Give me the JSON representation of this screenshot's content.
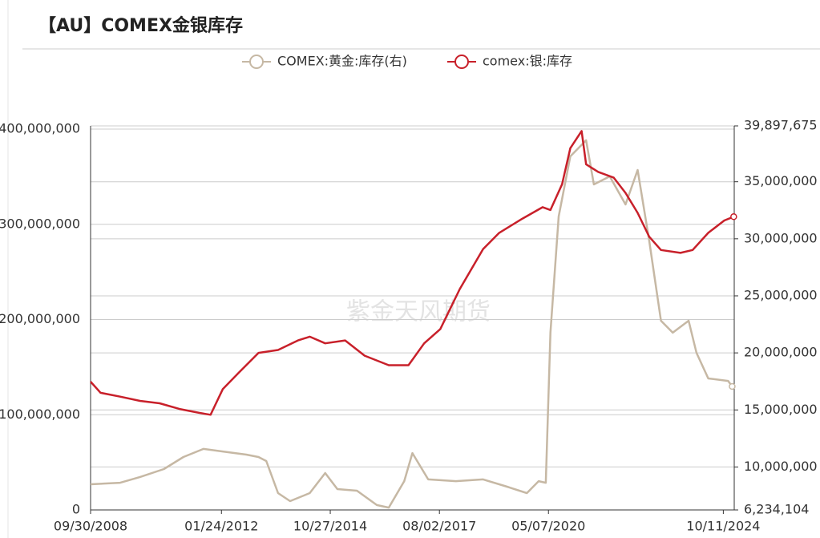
{
  "chart_data": {
    "type": "line",
    "title": "【AU】COMEX金银库存",
    "watermark": "紫金天风期货",
    "xlim": [
      "09/30/2008",
      "01/20/2025"
    ],
    "xticks": [
      "09/30/2008",
      "01/24/2012",
      "10/27/2014",
      "08/02/2017",
      "05/07/2020",
      "10/11/2024"
    ],
    "ylim": [
      0,
      400000000
    ],
    "yticks": [
      {
        "value": 0,
        "label": "0"
      },
      {
        "value": 100000000,
        "label": "100,000,000"
      },
      {
        "value": 200000000,
        "label": "200,000,000"
      },
      {
        "value": 300000000,
        "label": "300,000,000"
      },
      {
        "value": 400000000,
        "label": "400,000,000"
      }
    ],
    "y2lim": [
      6234104,
      39897675
    ],
    "y2ticks": [
      {
        "value": 6234104,
        "label": "6,234,104"
      },
      {
        "value": 10000000,
        "label": "10,000,000"
      },
      {
        "value": 15000000,
        "label": "15,000,000"
      },
      {
        "value": 20000000,
        "label": "20,000,000"
      },
      {
        "value": 25000000,
        "label": "25,000,000"
      },
      {
        "value": 30000000,
        "label": "30,000,000"
      },
      {
        "value": 35000000,
        "label": "35,000,000"
      },
      {
        "value": 39897675,
        "label": "39,897,675"
      }
    ],
    "grid": true,
    "legend": "top",
    "series": [
      {
        "name": "COMEX:黄金:库存(右)",
        "color": "#c6b8a4",
        "axis": "y2",
        "x": [
          "09/30/2008",
          "07/01/2009",
          "01/01/2010",
          "08/10/2010",
          "02/06/2011",
          "08/10/2011",
          "02/06/2012",
          "09/10/2012",
          "01/01/2013",
          "03/14/2013",
          "07/01/2013",
          "10/20/2013",
          "04/20/2014",
          "09/10/2014",
          "01/01/2015",
          "07/01/2015",
          "01/01/2016",
          "04/20/2016",
          "09/10/2016",
          "11/25/2016",
          "04/20/2017",
          "01/01/2018",
          "09/10/2018",
          "04/20/2019",
          "10/20/2019",
          "02/06/2020",
          "04/12/2020",
          "05/25/2020",
          "08/10/2020",
          "11/25/2020",
          "04/20/2021",
          "07/01/2021",
          "11/25/2021",
          "04/20/2022",
          "08/10/2022",
          "11/25/2022",
          "03/14/2023",
          "07/01/2023",
          "11/25/2023",
          "02/06/2024",
          "05/25/2024",
          "11/25/2024",
          "01/01/2025"
        ],
        "values": [
          8480000,
          8620000,
          9120000,
          9820000,
          10870000,
          11580000,
          11360000,
          11080000,
          10870000,
          10520000,
          7710000,
          7010000,
          7710000,
          9470000,
          8060000,
          7920000,
          6660000,
          6440000,
          8760000,
          11220000,
          8910000,
          8760000,
          8910000,
          8270000,
          7710000,
          8760000,
          8620000,
          21770000,
          31960000,
          37230000,
          38630000,
          34770000,
          35470000,
          33010000,
          36030000,
          29850000,
          22820000,
          21770000,
          22820000,
          20010000,
          17760000,
          17540000,
          17060000
        ]
      },
      {
        "name": "comex:银:库存",
        "color": "#c8202a",
        "x": [
          "09/30/2008",
          "01/01/2009",
          "07/01/2009",
          "01/01/2010",
          "07/01/2010",
          "01/01/2011",
          "07/01/2011",
          "10/15/2011",
          "02/06/2012",
          "07/01/2012",
          "01/01/2013",
          "07/01/2013",
          "01/01/2014",
          "04/20/2014",
          "09/10/2014",
          "03/14/2015",
          "09/10/2015",
          "04/20/2016",
          "10/20/2016",
          "03/14/2017",
          "08/10/2017",
          "02/06/2018",
          "09/10/2018",
          "02/06/2019",
          "09/10/2019",
          "03/14/2020",
          "05/25/2020",
          "09/10/2020",
          "11/25/2020",
          "03/10/2021",
          "04/20/2021",
          "08/10/2021",
          "01/01/2022",
          "04/20/2022",
          "08/10/2022",
          "11/25/2022",
          "03/14/2023",
          "09/10/2023",
          "01/01/2024",
          "05/25/2024",
          "10/20/2024",
          "01/15/2025"
        ],
        "values": [
          134700000,
          123000000,
          119000000,
          114500000,
          112000000,
          106000000,
          102000000,
          100000000,
          127000000,
          144000000,
          165000000,
          168000000,
          178000000,
          182000000,
          175000000,
          178000000,
          162000000,
          152000000,
          152000000,
          175000000,
          190000000,
          232000000,
          274000000,
          291000000,
          306000000,
          318000000,
          315000000,
          342000000,
          380000000,
          398000000,
          363000000,
          355000000,
          349000000,
          333000000,
          312000000,
          287000000,
          273000000,
          270000000,
          273000000,
          291000000,
          304000000,
          308000000
        ]
      }
    ]
  }
}
